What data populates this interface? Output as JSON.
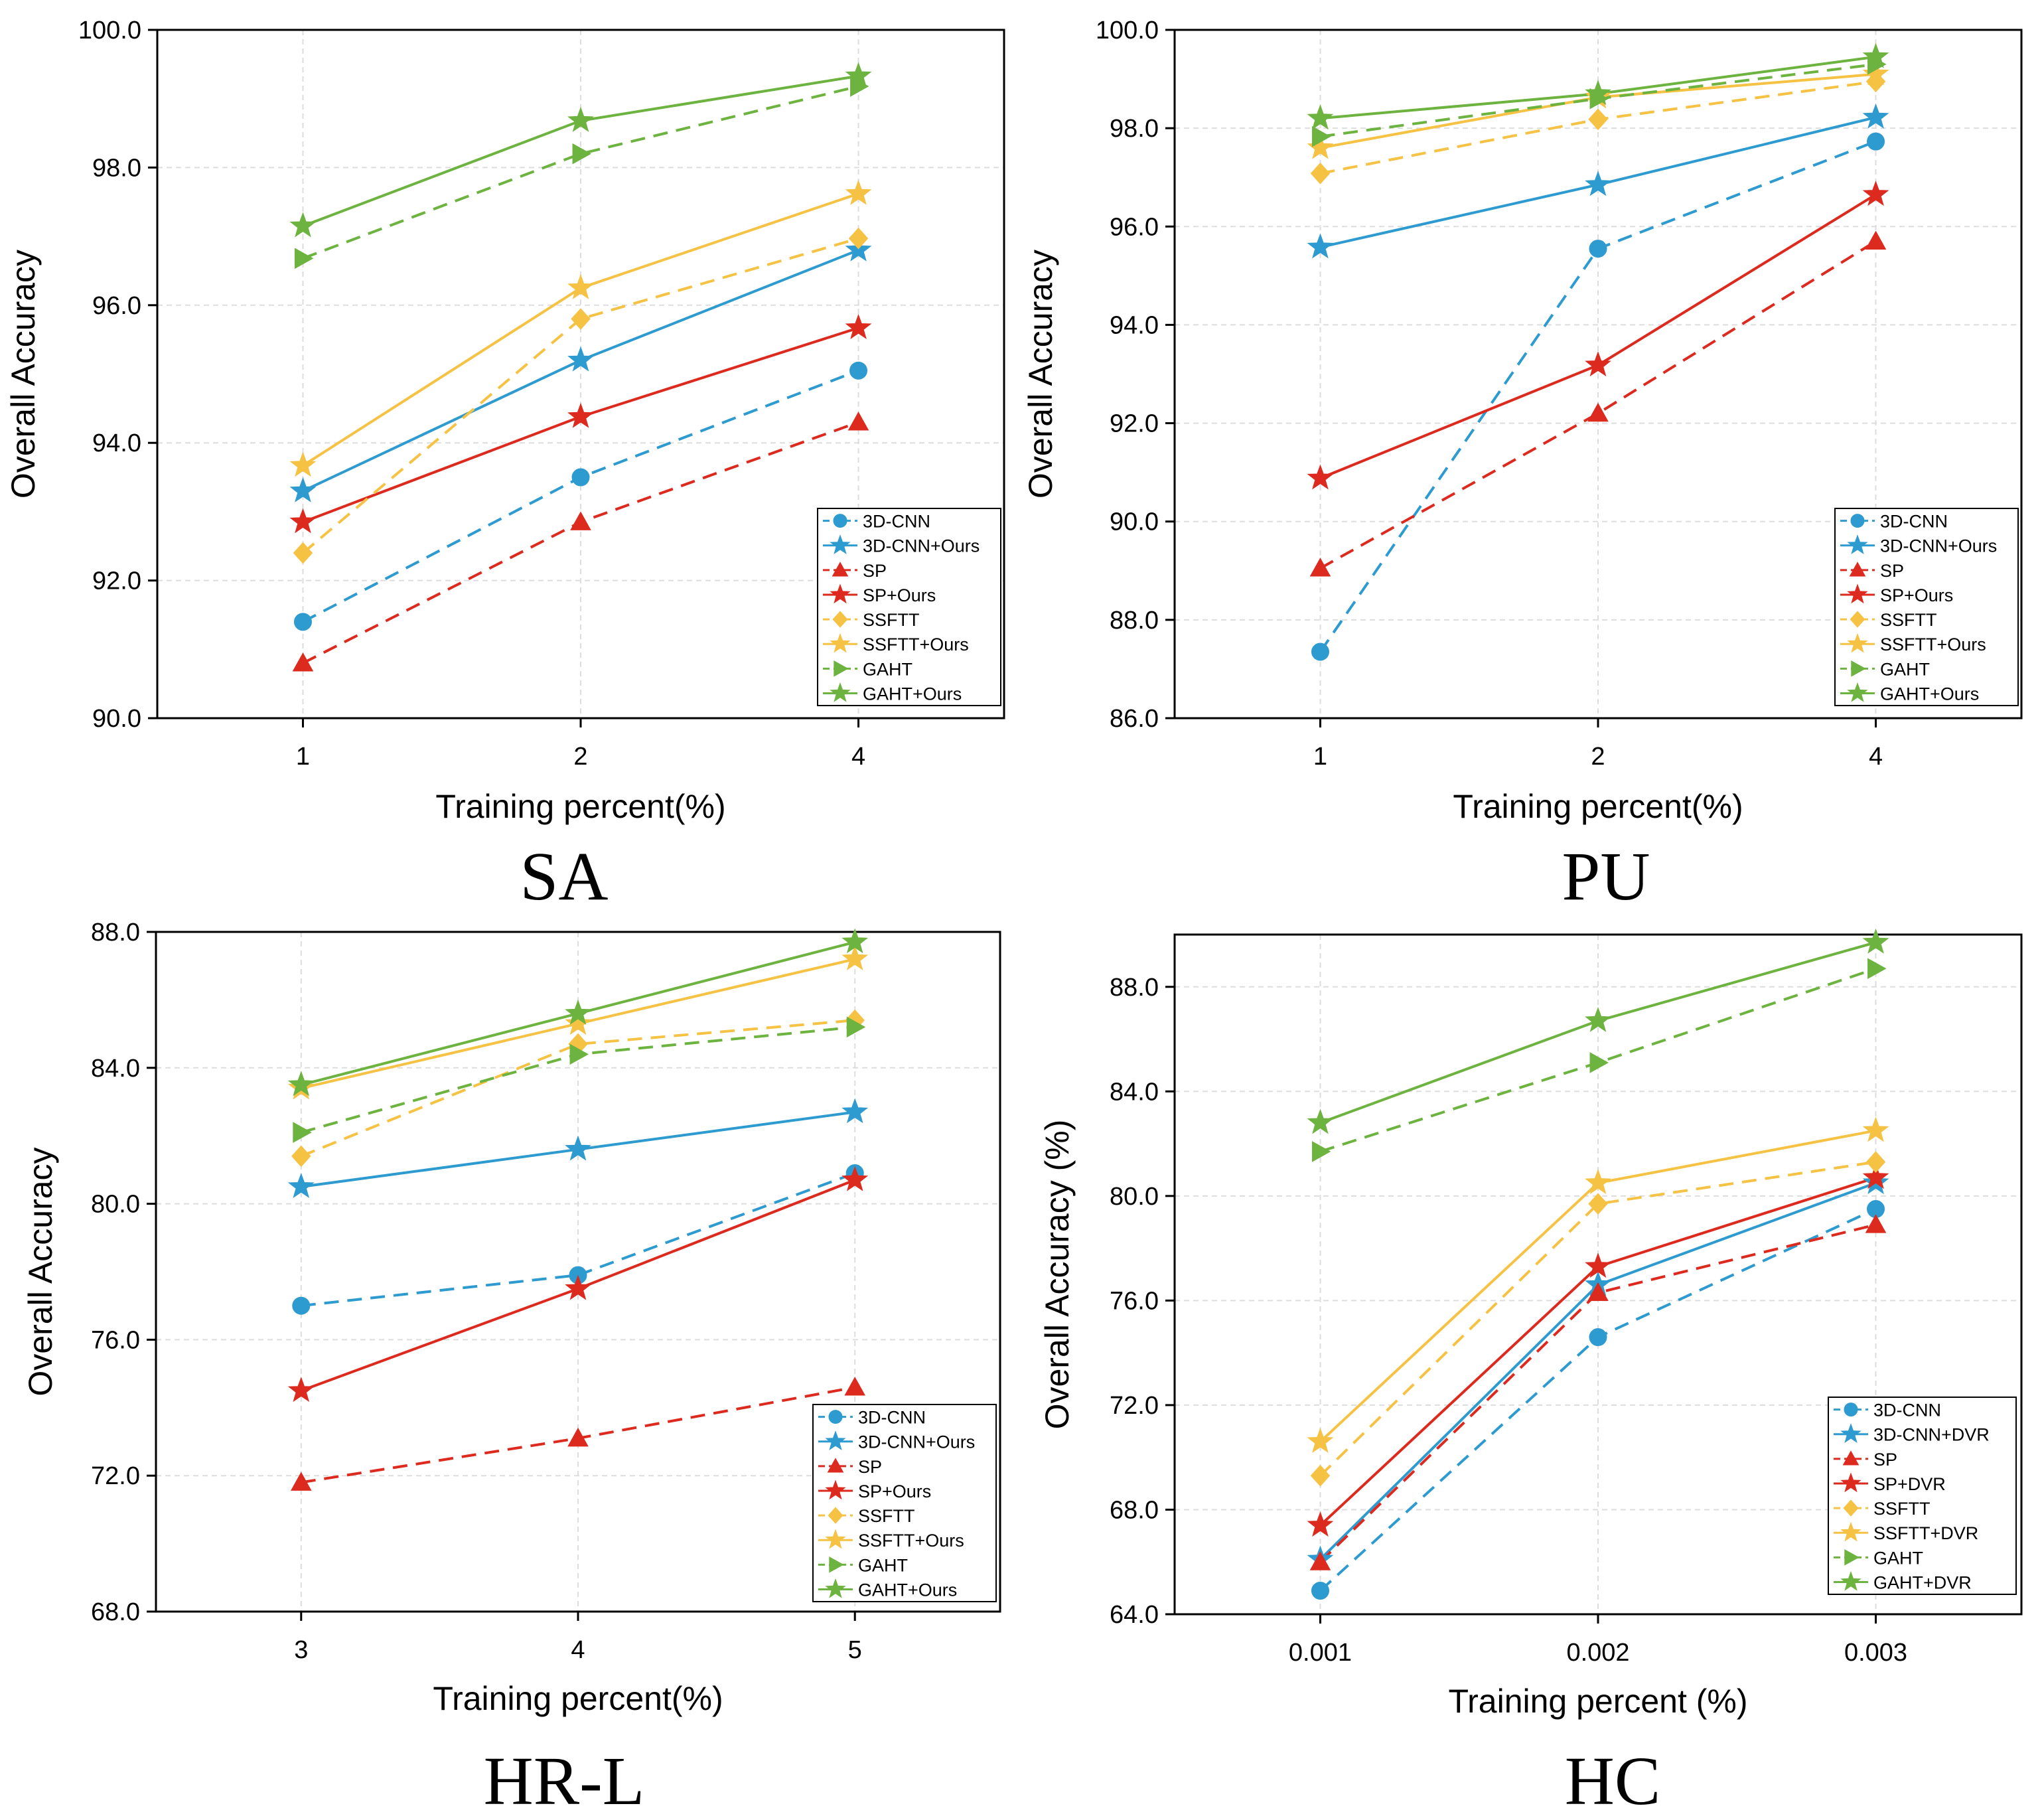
{
  "chart_data": [
    {
      "type": "line",
      "caption": "SA",
      "xlabel": "Training percent(%)",
      "ylabel": "Overall Accuracy",
      "x": [
        "1",
        "2",
        "4"
      ],
      "ylim": [
        90.0,
        100.0
      ],
      "yticks": [
        "90.0",
        "92.0",
        "94.0",
        "96.0",
        "98.0",
        "100.0"
      ],
      "grid": true,
      "legend_position": "bottom-right",
      "series": [
        {
          "name": "3D-CNN",
          "color": "#2e9bd0",
          "marker": "circle",
          "style": "dashed",
          "values": [
            91.4,
            93.5,
            95.05
          ]
        },
        {
          "name": "3D-CNN+Ours",
          "color": "#2e9bd0",
          "marker": "star",
          "style": "solid",
          "values": [
            93.3,
            95.2,
            96.8
          ]
        },
        {
          "name": "SP",
          "color": "#dd2a1e",
          "marker": "triangle",
          "style": "dashed",
          "values": [
            90.8,
            92.85,
            94.3
          ]
        },
        {
          "name": "SP+Ours",
          "color": "#dd2a1e",
          "marker": "star",
          "style": "solid",
          "values": [
            92.85,
            94.38,
            95.67
          ]
        },
        {
          "name": "SSFTT",
          "color": "#f6c244",
          "marker": "diamond",
          "style": "dashed",
          "values": [
            92.4,
            95.8,
            96.97
          ]
        },
        {
          "name": "SSFTT+Ours",
          "color": "#f6c244",
          "marker": "star",
          "style": "solid",
          "values": [
            93.67,
            96.25,
            97.62
          ]
        },
        {
          "name": "GAHT",
          "color": "#6db33f",
          "marker": "triangle-right",
          "style": "dashed",
          "values": [
            96.68,
            98.2,
            99.18
          ]
        },
        {
          "name": "GAHT+Ours",
          "color": "#6db33f",
          "marker": "star",
          "style": "solid",
          "values": [
            97.15,
            98.68,
            99.33
          ]
        }
      ]
    },
    {
      "type": "line",
      "caption": "PU",
      "xlabel": "Training percent(%)",
      "ylabel": "Overall Accuracy",
      "x": [
        "1",
        "2",
        "4"
      ],
      "ylim": [
        86.0,
        100.0
      ],
      "yticks": [
        "86.0",
        "88.0",
        "90.0",
        "92.0",
        "94.0",
        "96.0",
        "98.0",
        "100.0"
      ],
      "grid": true,
      "legend_position": "bottom-right",
      "series": [
        {
          "name": "3D-CNN",
          "color": "#2e9bd0",
          "marker": "circle",
          "style": "dashed",
          "values": [
            87.35,
            95.55,
            97.73
          ]
        },
        {
          "name": "3D-CNN+Ours",
          "color": "#2e9bd0",
          "marker": "star",
          "style": "solid",
          "values": [
            95.58,
            96.85,
            98.22
          ]
        },
        {
          "name": "SP",
          "color": "#dd2a1e",
          "marker": "triangle",
          "style": "dashed",
          "values": [
            89.05,
            92.2,
            95.7
          ]
        },
        {
          "name": "SP+Ours",
          "color": "#dd2a1e",
          "marker": "star",
          "style": "solid",
          "values": [
            90.88,
            93.18,
            96.65
          ]
        },
        {
          "name": "SSFTT",
          "color": "#f6c244",
          "marker": "diamond",
          "style": "dashed",
          "values": [
            97.08,
            98.18,
            98.95
          ]
        },
        {
          "name": "SSFTT+Ours",
          "color": "#f6c244",
          "marker": "star",
          "style": "solid",
          "values": [
            97.6,
            98.63,
            99.1
          ]
        },
        {
          "name": "GAHT",
          "color": "#6db33f",
          "marker": "triangle-right",
          "style": "dashed",
          "values": [
            97.83,
            98.6,
            99.3
          ]
        },
        {
          "name": "GAHT+Ours",
          "color": "#6db33f",
          "marker": "star",
          "style": "solid",
          "values": [
            98.2,
            98.7,
            99.45
          ]
        }
      ]
    },
    {
      "type": "line",
      "caption": "HR-L",
      "xlabel": "Training percent(%)",
      "ylabel": "Overall Accuracy",
      "x": [
        "3",
        "4",
        "5"
      ],
      "ylim": [
        68.0,
        88.0
      ],
      "yticks": [
        "68.0",
        "72.0",
        "76.0",
        "80.0",
        "84.0",
        "88.0"
      ],
      "grid": true,
      "legend_position": "bottom-right",
      "series": [
        {
          "name": "3D-CNN",
          "color": "#2e9bd0",
          "marker": "circle",
          "style": "dashed",
          "values": [
            77.0,
            77.9,
            80.9
          ]
        },
        {
          "name": "3D-CNN+Ours",
          "color": "#2e9bd0",
          "marker": "star",
          "style": "solid",
          "values": [
            80.5,
            81.6,
            82.7
          ]
        },
        {
          "name": "SP",
          "color": "#dd2a1e",
          "marker": "triangle",
          "style": "dashed",
          "values": [
            71.8,
            73.1,
            74.6
          ]
        },
        {
          "name": "SP+Ours",
          "color": "#dd2a1e",
          "marker": "star",
          "style": "solid",
          "values": [
            74.5,
            77.5,
            80.7
          ]
        },
        {
          "name": "SSFTT",
          "color": "#f6c244",
          "marker": "diamond",
          "style": "dashed",
          "values": [
            81.4,
            84.7,
            85.4
          ]
        },
        {
          "name": "SSFTT+Ours",
          "color": "#f6c244",
          "marker": "star",
          "style": "solid",
          "values": [
            83.4,
            85.3,
            87.2
          ]
        },
        {
          "name": "GAHT",
          "color": "#6db33f",
          "marker": "triangle-right",
          "style": "dashed",
          "values": [
            82.1,
            84.4,
            85.2
          ]
        },
        {
          "name": "GAHT+Ours",
          "color": "#6db33f",
          "marker": "star",
          "style": "solid",
          "values": [
            83.5,
            85.6,
            87.7
          ]
        }
      ]
    },
    {
      "type": "line",
      "caption": "HC",
      "xlabel": "Training percent (%)",
      "ylabel": "Overall Accuracy (%)",
      "x": [
        "0.001",
        "0.002",
        "0.003"
      ],
      "ylim": [
        64.0,
        90.0
      ],
      "yticks": [
        "64.0",
        "68.0",
        "72.0",
        "76.0",
        "80.0",
        "84.0",
        "88.0"
      ],
      "grid": true,
      "legend_position": "bottom-right",
      "series": [
        {
          "name": "3D-CNN",
          "color": "#2e9bd0",
          "marker": "circle",
          "style": "dashed",
          "values": [
            64.9,
            74.6,
            79.5
          ]
        },
        {
          "name": "3D-CNN+DVR",
          "color": "#2e9bd0",
          "marker": "star",
          "style": "solid",
          "values": [
            66.1,
            76.6,
            80.5
          ]
        },
        {
          "name": "SP",
          "color": "#dd2a1e",
          "marker": "triangle",
          "style": "dashed",
          "values": [
            66.0,
            76.3,
            78.9
          ]
        },
        {
          "name": "SP+DVR",
          "color": "#dd2a1e",
          "marker": "star",
          "style": "solid",
          "values": [
            67.4,
            77.3,
            80.7
          ]
        },
        {
          "name": "SSFTT",
          "color": "#f6c244",
          "marker": "diamond",
          "style": "dashed",
          "values": [
            69.3,
            79.7,
            81.3
          ]
        },
        {
          "name": "SSFTT+DVR",
          "color": "#f6c244",
          "marker": "star",
          "style": "solid",
          "values": [
            70.6,
            80.5,
            82.5
          ]
        },
        {
          "name": "GAHT",
          "color": "#6db33f",
          "marker": "triangle-right",
          "style": "dashed",
          "values": [
            81.7,
            85.1,
            88.7
          ]
        },
        {
          "name": "GAHT+DVR",
          "color": "#6db33f",
          "marker": "star",
          "style": "solid",
          "values": [
            82.8,
            86.7,
            89.7
          ]
        }
      ]
    }
  ]
}
